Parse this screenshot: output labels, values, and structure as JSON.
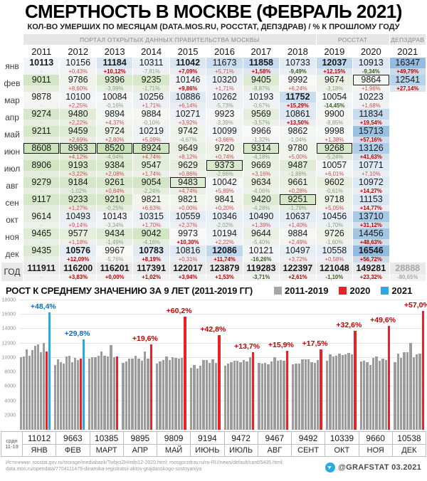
{
  "header": {
    "title": "СМЕРТНОСТЬ В МОСКВЕ (ФЕВРАЛЬ 2021)",
    "subtitle": "КОЛ-ВО УМЕРШИХ ПО МЕСЯЦАМ (DATA.MOS.RU, РОССТАТ, ДЕПЗДРАВ) / % К ПРОШЛОМУ ГОДУ"
  },
  "table": {
    "source_bands": [
      {
        "label": "ПОРТАЛ ОТКРЫТЫХ ДАННЫХ ПРАВИТЕЛЬСТВА МОСКВЫ",
        "span": 8
      },
      {
        "label": "РОССТАТ",
        "span": 2
      },
      {
        "label": "ДЕПЗДРАВ",
        "span": 1
      }
    ],
    "years": [
      "2011",
      "2012",
      "2013",
      "2014",
      "2015",
      "2016",
      "2017",
      "2018",
      "2019",
      "2020",
      "2021"
    ],
    "months": [
      {
        "label": "янв",
        "values": [
          10113,
          10156,
          11184,
          10311,
          11042,
          11673,
          11858,
          10733,
          12037,
          10913,
          16347
        ],
        "pcts": [
          "-",
          "+0,43%",
          "+10,12%",
          "-7,81%",
          "+7,09%",
          "+5,71%",
          "+1,58%",
          "-9,49%",
          "+12,15%",
          "-9,34%",
          "+49,79%"
        ]
      },
      {
        "label": "фев",
        "values": [
          9011,
          9786,
          9396,
          9235,
          10146,
          10320,
          9405,
          9992,
          9674,
          9864,
          12541
        ],
        "pcts": [
          "-",
          "+8,60%",
          "-3,99%",
          "-1,71%",
          "+9,86%",
          "+1,71%",
          "-8,87%",
          "+6,24%",
          "-3,18%",
          "+1,96%",
          "+27,14%"
        ]
      },
      {
        "label": "мар",
        "values": [
          9878,
          10100,
          10084,
          10256,
          10886,
          10262,
          10193,
          11752,
          10054,
          10223,
          null
        ],
        "pcts": [
          "-",
          "+2,25%",
          "-0,16%",
          "+1,71%",
          "+6,14%",
          "-5,73%",
          "-0,67%",
          "+15,29%",
          "-14,45%",
          "+1,68%",
          null
        ]
      },
      {
        "label": "апр",
        "values": [
          9274,
          9480,
          9894,
          9884,
          10271,
          9923,
          9569,
          10861,
          9900,
          11834,
          null
        ],
        "pcts": [
          "-",
          "+2,22%",
          "+4,37%",
          "-0,10%",
          "+3,92%",
          "-3,39%",
          "-3,57%",
          "+13,50%",
          "-8,85%",
          "+19,54%",
          null
        ]
      },
      {
        "label": "май",
        "values": [
          9211,
          9459,
          9724,
          10219,
          9742,
          10099,
          9966,
          9862,
          9998,
          15713,
          null
        ],
        "pcts": [
          "-",
          "+2,69%",
          "+2,80%",
          "+5,09%",
          "-4,67%",
          "+3,66%",
          "-1,32%",
          "-1,04%",
          "+1,38%",
          "+57,16%",
          null
        ]
      },
      {
        "label": "июн",
        "values": [
          8608,
          8963,
          8520,
          8924,
          9649,
          9720,
          9314,
          9780,
          9268,
          13126,
          null
        ],
        "pcts": [
          "-",
          "+4,12%",
          "-4,94%",
          "+4,74%",
          "+8,12%",
          "+0,74%",
          "-4,18%",
          "+5,00%",
          "-5,24%",
          "+41,63%",
          null
        ]
      },
      {
        "label": "июл",
        "values": [
          8906,
          9193,
          9384,
          9547,
          9629,
          9373,
          9669,
          9487,
          10057,
          10771,
          null
        ],
        "pcts": [
          "-",
          "+3,22%",
          "+2,08%",
          "+1,74%",
          "+0,86%",
          "-2,66%",
          "+3,16%",
          "-1,88%",
          "+6,01%",
          "+7,10%",
          null
        ]
      },
      {
        "label": "авг",
        "values": [
          9279,
          9184,
          9261,
          9054,
          9483,
          10042,
          9634,
          9661,
          9602,
          10972,
          null
        ],
        "pcts": [
          "-",
          "-1,02%",
          "+0,84%",
          "-2,24%",
          "+4,74%",
          "+5,89%",
          "-4,06%",
          "+0,28%",
          "-0,61%",
          "+14,27%",
          null
        ]
      },
      {
        "label": "сен",
        "values": [
          9117,
          9233,
          9210,
          9821,
          9821,
          9841,
          9420,
          9251,
          9718,
          11153,
          null
        ],
        "pcts": [
          "-",
          "+1,27%",
          "-0,25%",
          "+6,63%",
          "+0,00%",
          "+0,20%",
          "-4,28%",
          "-1,79%",
          "+5,05%",
          "+14,77%",
          null
        ]
      },
      {
        "label": "окт",
        "values": [
          9614,
          10493,
          10143,
          10315,
          10559,
          10346,
          10490,
          10637,
          10456,
          13710,
          null
        ],
        "pcts": [
          "-",
          "+9,14%",
          "-3,34%",
          "+1,70%",
          "+2,37%",
          "-2,02%",
          "+1,39%",
          "+1,40%",
          "-1,70%",
          "+31,12%",
          null
        ]
      },
      {
        "label": "ноя",
        "values": [
          9465,
          9577,
          9434,
          9042,
          9973,
          10194,
          9644,
          9884,
          9726,
          14456,
          null
        ],
        "pcts": [
          "-",
          "+1,18%",
          "-1,49%",
          "-4,16%",
          "+10,30%",
          "+2,22%",
          "-5,40%",
          "+2,49%",
          "-1,60%",
          "+48,63%",
          null
        ]
      },
      {
        "label": "дек",
        "values": [
          9435,
          10576,
          9967,
          10783,
          10816,
          12086,
          10121,
          10497,
          10558,
          16546,
          null
        ],
        "pcts": [
          "-",
          "+12,09%",
          "-5,76%",
          "+8,19%",
          "+0,31%",
          "+11,74%",
          "-16,26%",
          "+3,72%",
          "+0,58%",
          "+56,72%",
          null
        ]
      }
    ],
    "total": {
      "label": "ГОД",
      "values": [
        111911,
        116200,
        116201,
        117391,
        122017,
        123879,
        119283,
        122397,
        121048,
        149281,
        28888
      ],
      "pcts": [
        "-",
        "+3,83%",
        "+0,00%",
        "+1,02%",
        "+3,94%",
        "+1,53%",
        "-3,71%",
        "+2,61%",
        "-1,10%",
        "+23,32%",
        "-80,65%"
      ]
    }
  },
  "chart_data": {
    "type": "bar",
    "title": "РОСТ К СРЕДНЕМУ ЗНАЧЕНИЮ ЗА 9 ЛЕТ (2011-2019 ГГ)",
    "categories": [
      "ЯНВ",
      "ФЕВ",
      "МАРТ",
      "АПР",
      "МАЙ",
      "ИЮНЬ",
      "ИЮЛЬ",
      "АВГ",
      "СЕНТ",
      "ОКТ",
      "НОЯ",
      "ДЕК"
    ],
    "series": [
      {
        "name": "2011",
        "values": [
          10113,
          9011,
          9878,
          9274,
          9211,
          8608,
          8906,
          9279,
          9117,
          9614,
          9465,
          9435
        ]
      },
      {
        "name": "2012",
        "values": [
          10156,
          9786,
          10100,
          9480,
          9459,
          8963,
          9193,
          9184,
          9233,
          10493,
          9577,
          10576
        ]
      },
      {
        "name": "2013",
        "values": [
          11184,
          9396,
          10084,
          9894,
          9724,
          8520,
          9384,
          9261,
          9210,
          10143,
          9434,
          9967
        ]
      },
      {
        "name": "2014",
        "values": [
          10311,
          9235,
          10256,
          9884,
          10219,
          8924,
          9547,
          9054,
          9821,
          10315,
          9042,
          10783
        ]
      },
      {
        "name": "2015",
        "values": [
          11042,
          10146,
          10886,
          10271,
          9742,
          9649,
          9629,
          9483,
          9821,
          10559,
          9973,
          10816
        ]
      },
      {
        "name": "2016",
        "values": [
          11673,
          10320,
          10262,
          9923,
          10099,
          9720,
          9373,
          10042,
          9841,
          10346,
          10194,
          12086
        ]
      },
      {
        "name": "2017",
        "values": [
          11858,
          9405,
          10193,
          9569,
          9966,
          9314,
          9669,
          9634,
          9420,
          10490,
          9644,
          10121
        ]
      },
      {
        "name": "2018",
        "values": [
          10733,
          9992,
          11752,
          10861,
          9862,
          9780,
          9487,
          9661,
          9251,
          10637,
          9884,
          10497
        ]
      },
      {
        "name": "2019",
        "values": [
          12037,
          9674,
          10054,
          9900,
          9998,
          9268,
          10057,
          9602,
          9718,
          10456,
          9726,
          10558
        ]
      },
      {
        "name": "2020",
        "values": [
          10913,
          9864,
          10223,
          11834,
          15713,
          13126,
          10771,
          10972,
          11153,
          13710,
          14456,
          16546
        ]
      },
      {
        "name": "2021",
        "values": [
          16347,
          12541,
          null,
          null,
          null,
          null,
          null,
          null,
          null,
          null,
          null,
          null
        ]
      }
    ],
    "avg_2011_2019": [
      11012,
      9663,
      10385,
      9895,
      9809,
      9194,
      9472,
      9467,
      9492,
      10339,
      9660,
      10538
    ],
    "avg_row_label_line1": "срдн",
    "avg_row_label_line2": "11-19",
    "annotations": [
      {
        "category": "ЯНВ",
        "series": "2021",
        "text": "+48,4%"
      },
      {
        "category": "ФЕВ",
        "series": "2021",
        "text": "+29,8%"
      },
      {
        "category": "АПР",
        "series": "2020",
        "text": "+19,6%"
      },
      {
        "category": "МАЙ",
        "series": "2020",
        "text": "+60,2%"
      },
      {
        "category": "ИЮНЬ",
        "series": "2020",
        "text": "+42,8%"
      },
      {
        "category": "ИЮЛЬ",
        "series": "2020",
        "text": "+13,7%"
      },
      {
        "category": "АВГ",
        "series": "2020",
        "text": "+15,9%"
      },
      {
        "category": "СЕНТ",
        "series": "2020",
        "text": "+17,5%"
      },
      {
        "category": "ОКТ",
        "series": "2020",
        "text": "+32,6%"
      },
      {
        "category": "НОЯ",
        "series": "2020",
        "text": "+49,6%"
      },
      {
        "category": "ДЕК",
        "series": "2020",
        "text": "+57,0%"
      }
    ],
    "ylim": [
      0,
      18000
    ],
    "ytick_step": 2000,
    "grid": true,
    "legend_position": "top",
    "legend": [
      {
        "label": "2011-2019",
        "color": "#a6a6a6"
      },
      {
        "label": "2020",
        "color": "#e8212a"
      },
      {
        "label": "2021",
        "color": "#29abe2"
      }
    ],
    "colors": {
      "base": "#9c9c9c",
      "y2020": "#e8212a",
      "y2021": "#29abe2",
      "label2020": "#c20000",
      "label2021": "#0b6dbd"
    }
  },
  "footer": {
    "sources_line1": "Источники: rosstat.gov.ru/storage/mediabank/TwbjciZH/edn12-2020.html; mosgorzdrav.ru/ru-RU/news/default/card/5435.html;",
    "sources_line2": "data.mos.ru/opendata/7704111479-dinamika-registratsii-aktov-grajdanskogo-sostoyaniya",
    "credit": "@GRAFSTAT 03.2021"
  }
}
